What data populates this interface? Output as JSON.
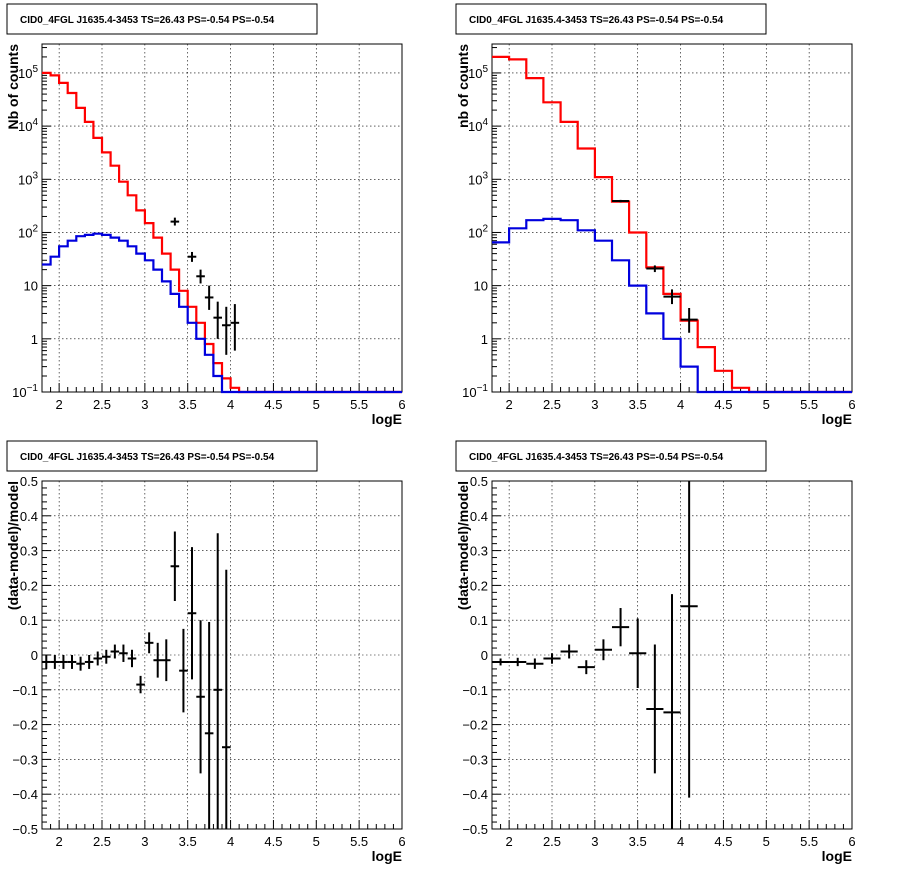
{
  "chart_data": [
    {
      "type": "line",
      "title": "CID0_4FGL J1635.4-3453 TS=26.43 PS=-0.54 PS=-0.54",
      "xlabel": "logE",
      "ylabel": "Nb of counts",
      "xlim": [
        1.8,
        6.0
      ],
      "ylim": [
        0.1,
        350000
      ],
      "yscale": "log",
      "grid": true,
      "x_ticks": [
        "2",
        "2.5",
        "3",
        "3.5",
        "4",
        "4.5",
        "5",
        "5.5",
        "6"
      ],
      "y_ticks": [
        {
          "label": "10^-1",
          "value": 0.1
        },
        {
          "label": "1",
          "value": 1
        },
        {
          "label": "10",
          "value": 10
        },
        {
          "label": "10^2",
          "value": 100
        },
        {
          "label": "10^3",
          "value": 1000
        },
        {
          "label": "10^4",
          "value": 10000
        },
        {
          "label": "10^5",
          "value": 100000
        }
      ],
      "bin_edges": [
        1.8,
        1.9,
        2.0,
        2.1,
        2.2,
        2.3,
        2.4,
        2.5,
        2.6,
        2.7,
        2.8,
        2.9,
        3.0,
        3.1,
        3.2,
        3.3,
        3.4,
        3.5,
        3.6,
        3.7,
        3.8,
        3.9,
        4.0,
        4.1,
        4.2,
        4.3,
        4.4,
        4.5,
        4.6,
        4.7,
        4.8,
        4.9,
        5.0,
        5.1,
        5.2,
        5.3,
        5.4,
        5.5,
        5.6,
        5.7,
        5.8,
        5.9,
        6.0
      ],
      "series": [
        {
          "color": "#ff0000",
          "style": "step",
          "values": [
            100000,
            90000,
            65000,
            42000,
            22000,
            12000,
            6000,
            3200,
            1800,
            900,
            500,
            260,
            150,
            80,
            40,
            20,
            8,
            4,
            2,
            0.8,
            0.35,
            0.18,
            0.12,
            0.1,
            0.1,
            0.1,
            0.1,
            0.1,
            0.1,
            0.1,
            0.1,
            0.1,
            0.1,
            0.1,
            0.1,
            0.1,
            0.1,
            0.1,
            0.1,
            0.1,
            0.1,
            0.1
          ]
        },
        {
          "color": "#0000dd",
          "style": "step",
          "values": [
            25,
            35,
            55,
            70,
            85,
            90,
            95,
            90,
            80,
            70,
            55,
            40,
            30,
            20,
            12,
            7,
            4,
            2,
            1,
            0.5,
            0.2,
            0.1,
            0.1,
            0.1,
            0.1,
            0.1,
            0.1,
            0.1,
            0.1,
            0.1,
            0.1,
            0.1,
            0.1,
            0.1,
            0.1,
            0.1,
            0.1,
            0.1,
            0.1,
            0.1,
            0.1,
            0.1
          ]
        },
        {
          "color": "#000000",
          "style": "points",
          "points": [
            {
              "x": 3.35,
              "y": 160,
              "lo": 135,
              "hi": 190
            },
            {
              "x": 3.55,
              "y": 35,
              "lo": 28,
              "hi": 43
            },
            {
              "x": 3.65,
              "y": 15,
              "lo": 11,
              "hi": 20
            },
            {
              "x": 3.75,
              "y": 6,
              "lo": 3.5,
              "hi": 10
            },
            {
              "x": 3.85,
              "y": 2.5,
              "lo": 1,
              "hi": 5
            },
            {
              "x": 3.95,
              "y": 1.8,
              "lo": 0.5,
              "hi": 4
            },
            {
              "x": 4.05,
              "y": 2,
              "lo": 0.6,
              "hi": 4.5
            }
          ]
        }
      ]
    },
    {
      "type": "line",
      "title": "CID0_4FGL J1635.4-3453 TS=26.43 PS=-0.54 PS=-0.54",
      "xlabel": "logE",
      "ylabel": "nb of counts",
      "xlim": [
        1.8,
        6.0
      ],
      "ylim": [
        0.1,
        350000
      ],
      "yscale": "log",
      "grid": true,
      "x_ticks": [
        "2",
        "2.5",
        "3",
        "3.5",
        "4",
        "4.5",
        "5",
        "5.5",
        "6"
      ],
      "y_ticks": [
        {
          "label": "10^-1",
          "value": 0.1
        },
        {
          "label": "1",
          "value": 1
        },
        {
          "label": "10",
          "value": 10
        },
        {
          "label": "10^2",
          "value": 100
        },
        {
          "label": "10^3",
          "value": 1000
        },
        {
          "label": "10^4",
          "value": 10000
        },
        {
          "label": "10^5",
          "value": 100000
        }
      ],
      "bin_edges": [
        1.8,
        2.0,
        2.2,
        2.4,
        2.6,
        2.8,
        3.0,
        3.2,
        3.4,
        3.6,
        3.8,
        4.0,
        4.2,
        4.4,
        4.6,
        4.8,
        5.0,
        5.2,
        5.4,
        5.6,
        5.8,
        6.0
      ],
      "series": [
        {
          "color": "#ff0000",
          "style": "step",
          "values": [
            200000,
            180000,
            80000,
            28000,
            12000,
            3800,
            1100,
            380,
            100,
            22,
            7,
            2.2,
            0.7,
            0.25,
            0.12,
            0.1,
            0.1,
            0.1,
            0.1,
            0.1,
            0.1
          ]
        },
        {
          "color": "#0000dd",
          "style": "step",
          "values": [
            65,
            120,
            170,
            180,
            170,
            110,
            70,
            30,
            10,
            3,
            1,
            0.3,
            0.1,
            0.1,
            0.1,
            0.1,
            0.1,
            0.1,
            0.1,
            0.1,
            0.1
          ]
        },
        {
          "color": "#000000",
          "style": "points",
          "points": [
            {
              "x": 3.3,
              "y": 390,
              "lo": 370,
              "hi": 410
            },
            {
              "x": 3.7,
              "y": 21,
              "lo": 18,
              "hi": 24
            },
            {
              "x": 3.9,
              "y": 6.2,
              "lo": 4.5,
              "hi": 8.5
            },
            {
              "x": 4.1,
              "y": 2.3,
              "lo": 1.3,
              "hi": 3.8
            }
          ]
        }
      ]
    },
    {
      "type": "scatter",
      "title": "CID0_4FGL J1635.4-3453 TS=26.43 PS=-0.54 PS=-0.54",
      "xlabel": "logE",
      "ylabel": "(data-model)/model",
      "xlim": [
        1.8,
        6.0
      ],
      "ylim": [
        -0.5,
        0.5
      ],
      "grid": true,
      "x_ticks": [
        "2",
        "2.5",
        "3",
        "3.5",
        "4",
        "4.5",
        "5",
        "5.5",
        "6"
      ],
      "y_ticks": [
        "-0.5",
        "-0.4",
        "-0.3",
        "-0.2",
        "-0.1",
        "0",
        "0.1",
        "0.2",
        "0.3",
        "0.4",
        "0.5"
      ],
      "bin_width": 0.1,
      "points": [
        {
          "x": 1.85,
          "y": -0.02,
          "err": 0.02
        },
        {
          "x": 1.95,
          "y": -0.02,
          "err": 0.02
        },
        {
          "x": 2.05,
          "y": -0.02,
          "err": 0.02
        },
        {
          "x": 2.15,
          "y": -0.02,
          "err": 0.02
        },
        {
          "x": 2.25,
          "y": -0.025,
          "err": 0.02
        },
        {
          "x": 2.35,
          "y": -0.02,
          "err": 0.02
        },
        {
          "x": 2.45,
          "y": -0.01,
          "err": 0.02
        },
        {
          "x": 2.55,
          "y": -0.005,
          "err": 0.02
        },
        {
          "x": 2.65,
          "y": 0.01,
          "err": 0.02
        },
        {
          "x": 2.75,
          "y": 0.005,
          "err": 0.025
        },
        {
          "x": 2.85,
          "y": -0.01,
          "err": 0.025
        },
        {
          "x": 2.95,
          "y": -0.085,
          "err": 0.025
        },
        {
          "x": 3.05,
          "y": 0.035,
          "err": 0.03
        },
        {
          "x": 3.15,
          "y": -0.015,
          "err": 0.05
        },
        {
          "x": 3.25,
          "y": -0.015,
          "err": 0.06
        },
        {
          "x": 3.35,
          "y": 0.255,
          "err": 0.1
        },
        {
          "x": 3.45,
          "y": -0.045,
          "err": 0.12
        },
        {
          "x": 3.55,
          "y": 0.12,
          "err": 0.19
        },
        {
          "x": 3.65,
          "y": -0.12,
          "err": 0.22
        },
        {
          "x": 3.75,
          "y": -0.225,
          "err": 0.32
        },
        {
          "x": 3.85,
          "y": -0.1,
          "err": 0.45
        },
        {
          "x": 3.95,
          "y": -0.265,
          "err": 0.51
        }
      ]
    },
    {
      "type": "scatter",
      "title": "CID0_4FGL J1635.4-3453 TS=26.43 PS=-0.54 PS=-0.54",
      "xlabel": "logE",
      "ylabel": "(data-model)/model",
      "xlim": [
        1.8,
        6.0
      ],
      "ylim": [
        -0.5,
        0.5
      ],
      "grid": true,
      "x_ticks": [
        "2",
        "2.5",
        "3",
        "3.5",
        "4",
        "4.5",
        "5",
        "5.5",
        "6"
      ],
      "y_ticks": [
        "-0.5",
        "-0.4",
        "-0.3",
        "-0.2",
        "-0.1",
        "0",
        "0.1",
        "0.2",
        "0.3",
        "0.4",
        "0.5"
      ],
      "bin_width": 0.2,
      "points": [
        {
          "x": 1.9,
          "y": -0.02,
          "err": 0.01
        },
        {
          "x": 2.1,
          "y": -0.02,
          "err": 0.012
        },
        {
          "x": 2.3,
          "y": -0.025,
          "err": 0.015
        },
        {
          "x": 2.5,
          "y": -0.01,
          "err": 0.015
        },
        {
          "x": 2.7,
          "y": 0.01,
          "err": 0.02
        },
        {
          "x": 2.9,
          "y": -0.035,
          "err": 0.02
        },
        {
          "x": 3.1,
          "y": 0.015,
          "err": 0.03
        },
        {
          "x": 3.3,
          "y": 0.08,
          "err": 0.055
        },
        {
          "x": 3.5,
          "y": 0.005,
          "err": 0.1
        },
        {
          "x": 3.7,
          "y": -0.155,
          "err": 0.185
        },
        {
          "x": 3.9,
          "y": -0.165,
          "err": 0.34
        },
        {
          "x": 4.1,
          "y": 0.14,
          "err": 0.55
        }
      ]
    }
  ]
}
